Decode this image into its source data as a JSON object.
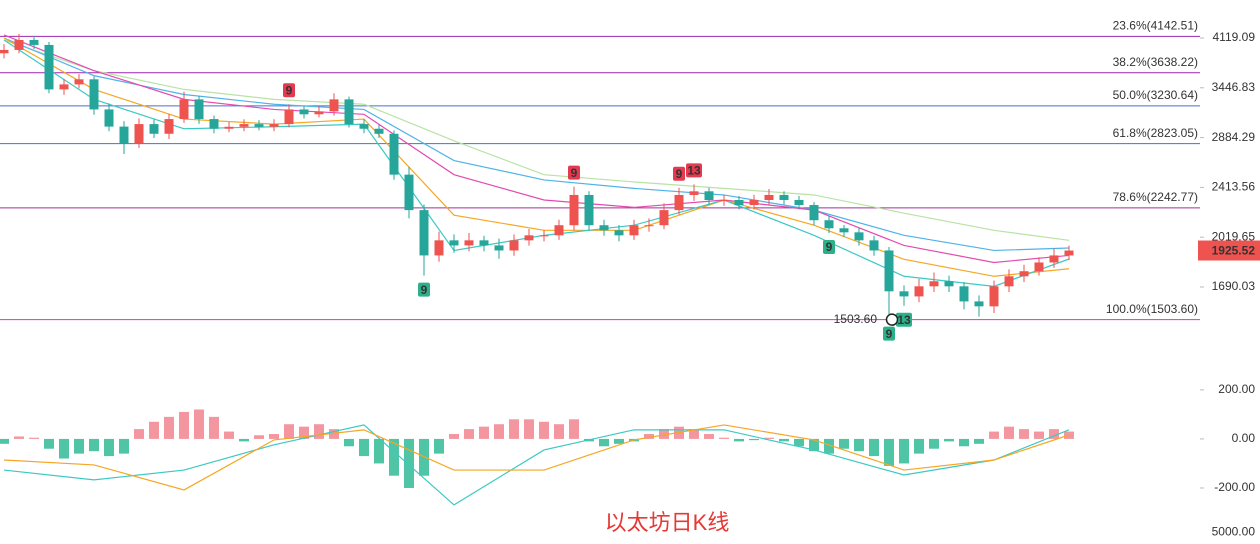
{
  "chart_data": {
    "type": "candlestick",
    "title": "以太坊日K线",
    "log_scale": true,
    "ylim": [
      1398,
      4719
    ],
    "yticks": [
      4119.09,
      3446.83,
      2884.29,
      2413.56,
      2019.65,
      1690.03
    ],
    "up_color": "#ef5350",
    "down_color": "#26a69a",
    "open": [
      3900,
      3947,
      4090,
      4018,
      3427,
      3489,
      3553,
      3190,
      3000,
      2822,
      3027,
      2924,
      3082,
      3307,
      3082,
      2977,
      2998,
      3027,
      2998,
      3027,
      3190,
      3135,
      3168,
      3307,
      3027,
      2977,
      2924,
      2526,
      2225,
      1892,
      1997,
      1961,
      1997,
      1961,
      1926,
      1997,
      2033,
      2033,
      2108,
      2349,
      2108,
      2070,
      2033,
      2108,
      2108,
      2225,
      2349,
      2380,
      2307,
      2307,
      2266,
      2307,
      2349,
      2307,
      2266,
      2146,
      2085,
      2055,
      1997,
      1926,
      1664,
      1634,
      1694,
      1725,
      1694,
      1605,
      1577,
      1694,
      1756,
      1788,
      1845,
      1892
    ],
    "high": [
      4030,
      4180,
      4150,
      4060,
      3560,
      3620,
      3590,
      3260,
      3060,
      3090,
      3080,
      3140,
      3400,
      3350,
      3120,
      3050,
      3080,
      3070,
      3080,
      3250,
      3230,
      3230,
      3380,
      3340,
      3080,
      3020,
      2960,
      2600,
      2270,
      2060,
      2040,
      2050,
      2030,
      2010,
      2040,
      2080,
      2070,
      2150,
      2420,
      2380,
      2150,
      2110,
      2150,
      2160,
      2280,
      2410,
      2440,
      2410,
      2350,
      2340,
      2350,
      2400,
      2380,
      2340,
      2290,
      2180,
      2110,
      2090,
      2030,
      1950,
      1700,
      1740,
      1780,
      1760,
      1720,
      1640,
      1730,
      1800,
      1830,
      1880,
      1940,
      1960
    ],
    "low": [
      3830,
      3900,
      3960,
      3380,
      3360,
      3440,
      3130,
      2950,
      2720,
      2780,
      2880,
      2870,
      3040,
      3030,
      2930,
      2940,
      2950,
      2960,
      2950,
      2990,
      3090,
      3100,
      3120,
      2990,
      2930,
      2880,
      2480,
      2160,
      1760,
      1850,
      1910,
      1920,
      1920,
      1870,
      1890,
      1960,
      1990,
      2000,
      2070,
      2070,
      2030,
      1990,
      2000,
      2060,
      2080,
      2190,
      2300,
      2270,
      2260,
      2230,
      2230,
      2270,
      2270,
      2230,
      2110,
      2050,
      2020,
      1960,
      1890,
      1503.6,
      1580,
      1600,
      1660,
      1660,
      1560,
      1520,
      1540,
      1660,
      1720,
      1760,
      1810,
      1860
    ],
    "close": [
      3947,
      4090,
      4018,
      3427,
      3489,
      3553,
      3190,
      3000,
      2822,
      3027,
      2924,
      3082,
      3307,
      3082,
      2977,
      2998,
      3027,
      2998,
      3027,
      3190,
      3135,
      3168,
      3307,
      3027,
      2977,
      2924,
      2526,
      2225,
      1892,
      1997,
      1961,
      1997,
      1961,
      1926,
      1997,
      2033,
      2033,
      2108,
      2349,
      2108,
      2070,
      2033,
      2108,
      2108,
      2225,
      2349,
      2380,
      2307,
      2307,
      2266,
      2307,
      2349,
      2307,
      2266,
      2146,
      2085,
      2055,
      1997,
      1926,
      1664,
      1634,
      1694,
      1725,
      1694,
      1605,
      1577,
      1694,
      1756,
      1788,
      1845,
      1892,
      1925.52
    ],
    "moving_averages": {
      "x": [
        0,
        6,
        12,
        18,
        24,
        30,
        36,
        42,
        48,
        54,
        60,
        66,
        71
      ],
      "series": [
        {
          "color": "#b9e2a4",
          "values": [
            4090,
            3665,
            3427,
            3307,
            3250,
            2851,
            2526,
            2461,
            2405,
            2349,
            2201,
            2070,
            1997
          ]
        },
        {
          "color": "#4fb3e8",
          "values": [
            4119,
            3600,
            3365,
            3250,
            3190,
            2657,
            2479,
            2405,
            2349,
            2225,
            2033,
            1926,
            1943
          ]
        },
        {
          "color": "#e44bb0",
          "values": [
            4164,
            3665,
            3307,
            3190,
            3135,
            2526,
            2307,
            2247,
            2307,
            2225,
            1961,
            1845,
            1892
          ]
        },
        {
          "color": "#f5a623",
          "values": [
            4119,
            3427,
            3082,
            3027,
            3082,
            2185,
            2070,
            2070,
            2307,
            2108,
            1866,
            1756,
            1804
          ]
        },
        {
          "color": "#3cc9c4",
          "values": [
            4090,
            3307,
            2977,
            2998,
            3027,
            1926,
            2033,
            2108,
            2307,
            2033,
            1756,
            1694,
            1868
          ]
        }
      ]
    },
    "fib_levels": [
      {
        "label": "23.6%(4142.51)",
        "value": 4142.51,
        "color": "#9c27b0"
      },
      {
        "label": "38.2%(3638.22)",
        "value": 3638.22,
        "color": "#9c27b0"
      },
      {
        "label": "50.0%(3230.64)",
        "value": 3230.64,
        "color": "#4a6fd1"
      },
      {
        "label": "61.8%(2823.05)",
        "value": 2823.05,
        "color": "#4a6fd1"
      },
      {
        "label": "78.6%(2242.77)",
        "value": 2242.77,
        "color": "#a5309c"
      },
      {
        "label": "100.0%(1503.60)",
        "value": 1503.6,
        "color": "#d63ab5"
      }
    ],
    "td_markers": [
      {
        "text": "9",
        "index": 19,
        "side": "above"
      },
      {
        "text": "9",
        "index": 38,
        "side": "above"
      },
      {
        "text": "9",
        "index": 45,
        "side": "above"
      },
      {
        "text": "13",
        "index": 46,
        "side": "above"
      },
      {
        "text": "9",
        "index": 28,
        "side": "below"
      },
      {
        "text": "9",
        "index": 55,
        "side": "below"
      },
      {
        "text": "9",
        "index": 59,
        "side": "below"
      },
      {
        "text": "13",
        "index": 60,
        "side": "below"
      }
    ],
    "low_annotation": {
      "value": 1503.6,
      "label": "1503.60",
      "index": 59
    },
    "macd": {
      "ylim": [
        -351,
        383
      ],
      "yticks": [
        {
          "value": 200,
          "label": "200.00"
        },
        {
          "value": 0,
          "label": "0.00"
        },
        {
          "value": -200,
          "label": "-200.00"
        }
      ],
      "up_color": "#f28b95",
      "down_color": "#3cbf9c",
      "histogram": [
        -20,
        10,
        5,
        -40,
        -80,
        -60,
        -50,
        -70,
        -60,
        40,
        70,
        90,
        110,
        120,
        90,
        30,
        -10,
        15,
        20,
        60,
        50,
        60,
        40,
        -30,
        -70,
        -100,
        -150,
        -200,
        -150,
        -60,
        20,
        40,
        50,
        60,
        80,
        80,
        70,
        60,
        80,
        -10,
        -30,
        -20,
        -10,
        20,
        40,
        50,
        40,
        20,
        5,
        -10,
        -5,
        5,
        -10,
        -30,
        -50,
        -60,
        -40,
        -50,
        -70,
        -110,
        -100,
        -60,
        -40,
        -10,
        -30,
        -20,
        30,
        50,
        40,
        30,
        40,
        30
      ],
      "dif_color": "#3cc9c4",
      "dea_color": "#f5a623",
      "dif": [
        -127,
        -167,
        -127,
        -24,
        57,
        -269,
        -45,
        37,
        37,
        -45,
        -147,
        -86,
        37
      ],
      "dea": [
        -86,
        -106,
        -208,
        -4,
        37,
        -127,
        -127,
        -4,
        57,
        -4,
        -127,
        -86,
        16
      ]
    },
    "volume": {
      "ylim": [
        0,
        6000
      ],
      "yticks": [
        {
          "value": 5000,
          "label": "5000.00"
        }
      ]
    }
  }
}
